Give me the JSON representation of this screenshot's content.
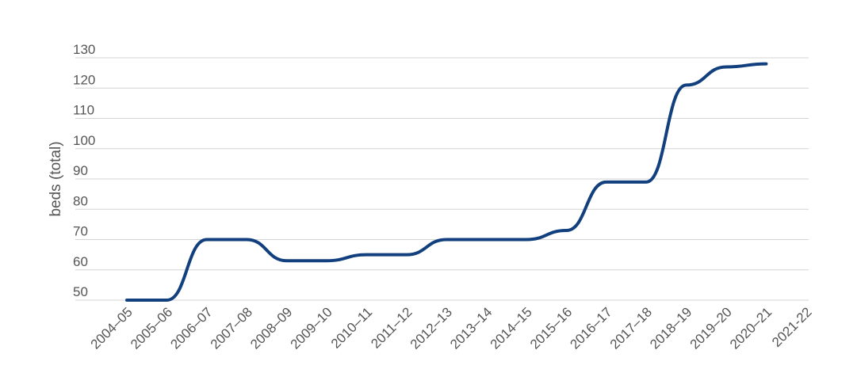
{
  "chart_data": {
    "type": "line",
    "title": "",
    "xlabel": "",
    "ylabel": "beds (total)",
    "categories": [
      "2004–05",
      "2005–06",
      "2006–07",
      "2007–08",
      "2008–09",
      "2009–10",
      "2010–11",
      "2011–12",
      "2012–13",
      "2013–14",
      "2014–15",
      "2015–16",
      "2016–17",
      "2017–18",
      "2018–19",
      "2019–20",
      "2020–21",
      "2021-22"
    ],
    "y_ticks": [
      50,
      60,
      70,
      80,
      90,
      100,
      110,
      120,
      130
    ],
    "ylim": [
      48,
      130
    ],
    "grid": true,
    "legend": "none",
    "series": [
      {
        "values": [
          50,
          50,
          70,
          70,
          63,
          63,
          65,
          65,
          70,
          70,
          70,
          73,
          89,
          89,
          121,
          127,
          128,
          null
        ]
      }
    ],
    "colors": {
      "line": "#123f7d",
      "grid": "#d4d4d4",
      "text": "#555555"
    }
  }
}
